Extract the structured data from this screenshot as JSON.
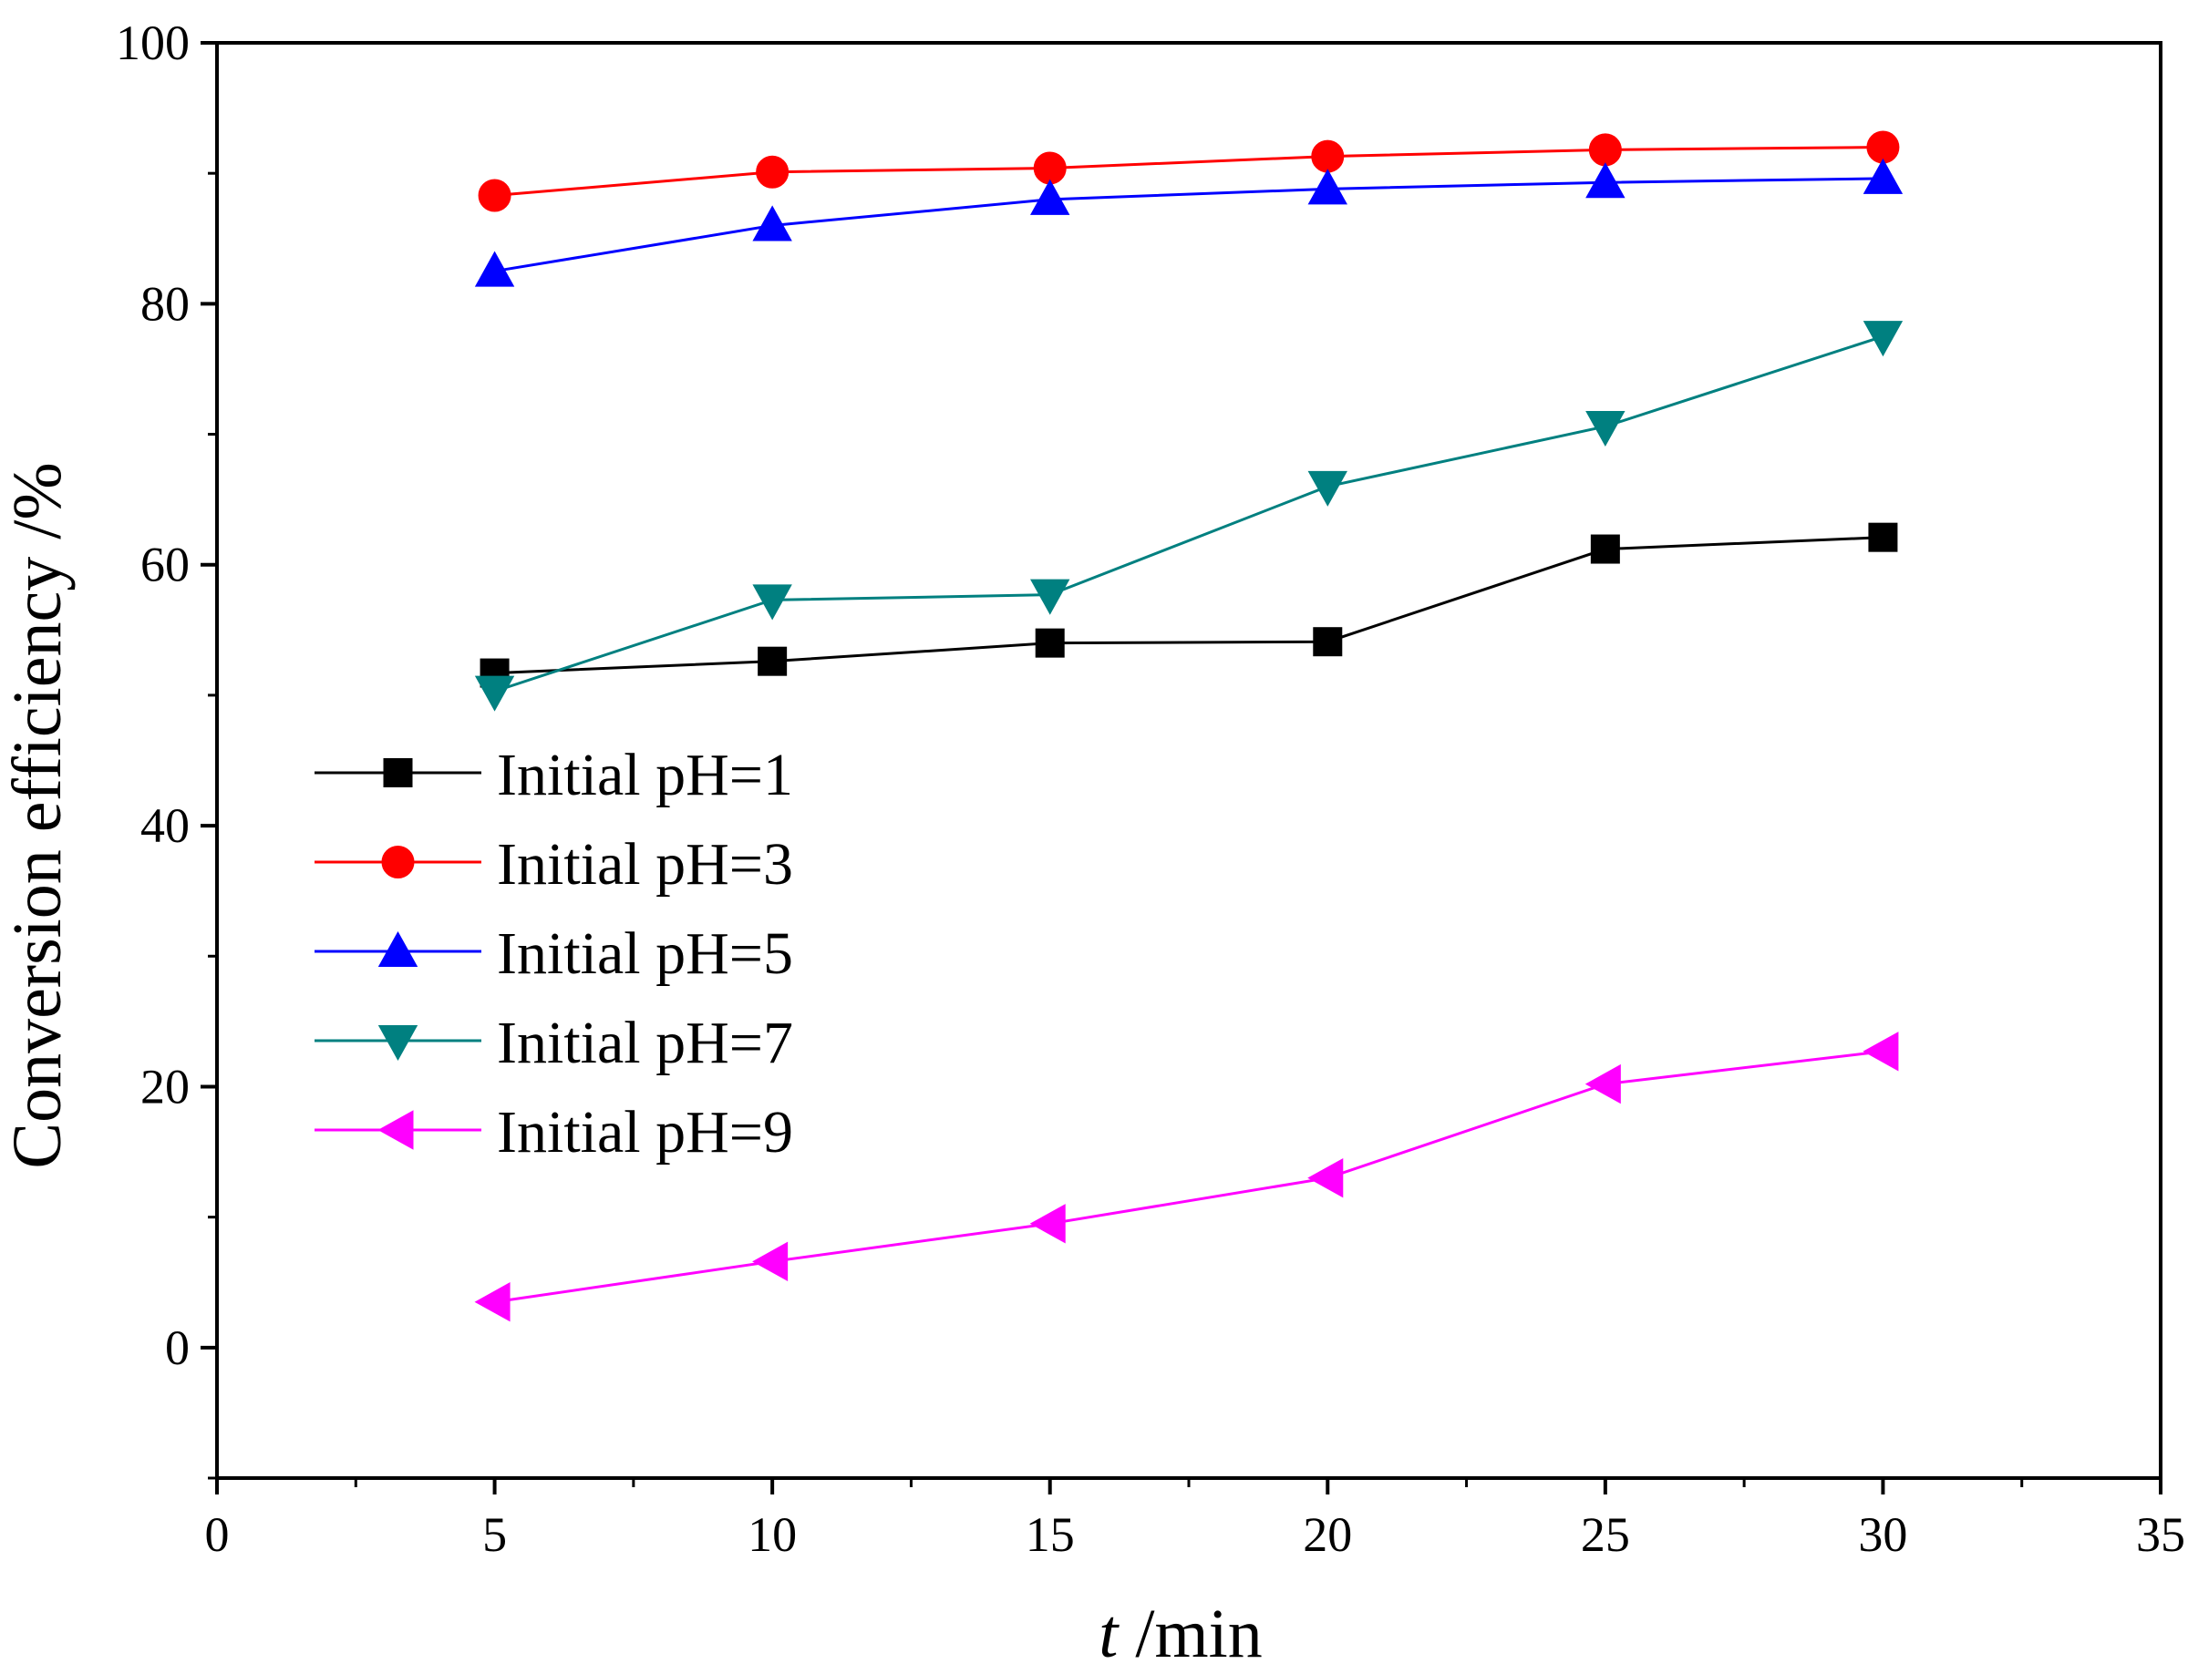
{
  "chart_data": {
    "type": "line",
    "title": "",
    "xlabel_italic": "t",
    "xlabel_rest": " /min",
    "ylabel": "Conversion efficiency /%",
    "xlim": [
      0,
      35
    ],
    "ylim": [
      -10,
      100
    ],
    "x_ticks": [
      0,
      5,
      10,
      15,
      20,
      25,
      30,
      35
    ],
    "y_ticks": [
      0,
      20,
      40,
      60,
      80,
      100
    ],
    "x_minor_step": 2.5,
    "y_minor_step": 10,
    "grid": false,
    "legend_position": "left",
    "x": [
      5,
      10,
      15,
      20,
      25,
      30
    ],
    "series": [
      {
        "name": "Initial pH=1",
        "color": "#000000",
        "marker": "square",
        "values": [
          51.7,
          52.6,
          54.0,
          54.1,
          61.2,
          62.1
        ]
      },
      {
        "name": "Initial pH=3",
        "color": "#ff0000",
        "marker": "circle",
        "values": [
          88.3,
          90.1,
          90.4,
          91.3,
          91.8,
          92.0
        ]
      },
      {
        "name": "Initial pH=5",
        "color": "#0000ff",
        "marker": "triangle-up",
        "values": [
          82.5,
          86.0,
          88.0,
          88.8,
          89.3,
          89.6
        ]
      },
      {
        "name": "Initial pH=7",
        "color": "#008080",
        "marker": "triangle-down",
        "values": [
          50.3,
          57.3,
          57.7,
          66.0,
          70.6,
          77.5
        ]
      },
      {
        "name": "Initial pH=9",
        "color": "#ff00ff",
        "marker": "triangle-left",
        "values": [
          3.5,
          6.6,
          9.5,
          13.0,
          20.2,
          22.7
        ]
      }
    ]
  }
}
